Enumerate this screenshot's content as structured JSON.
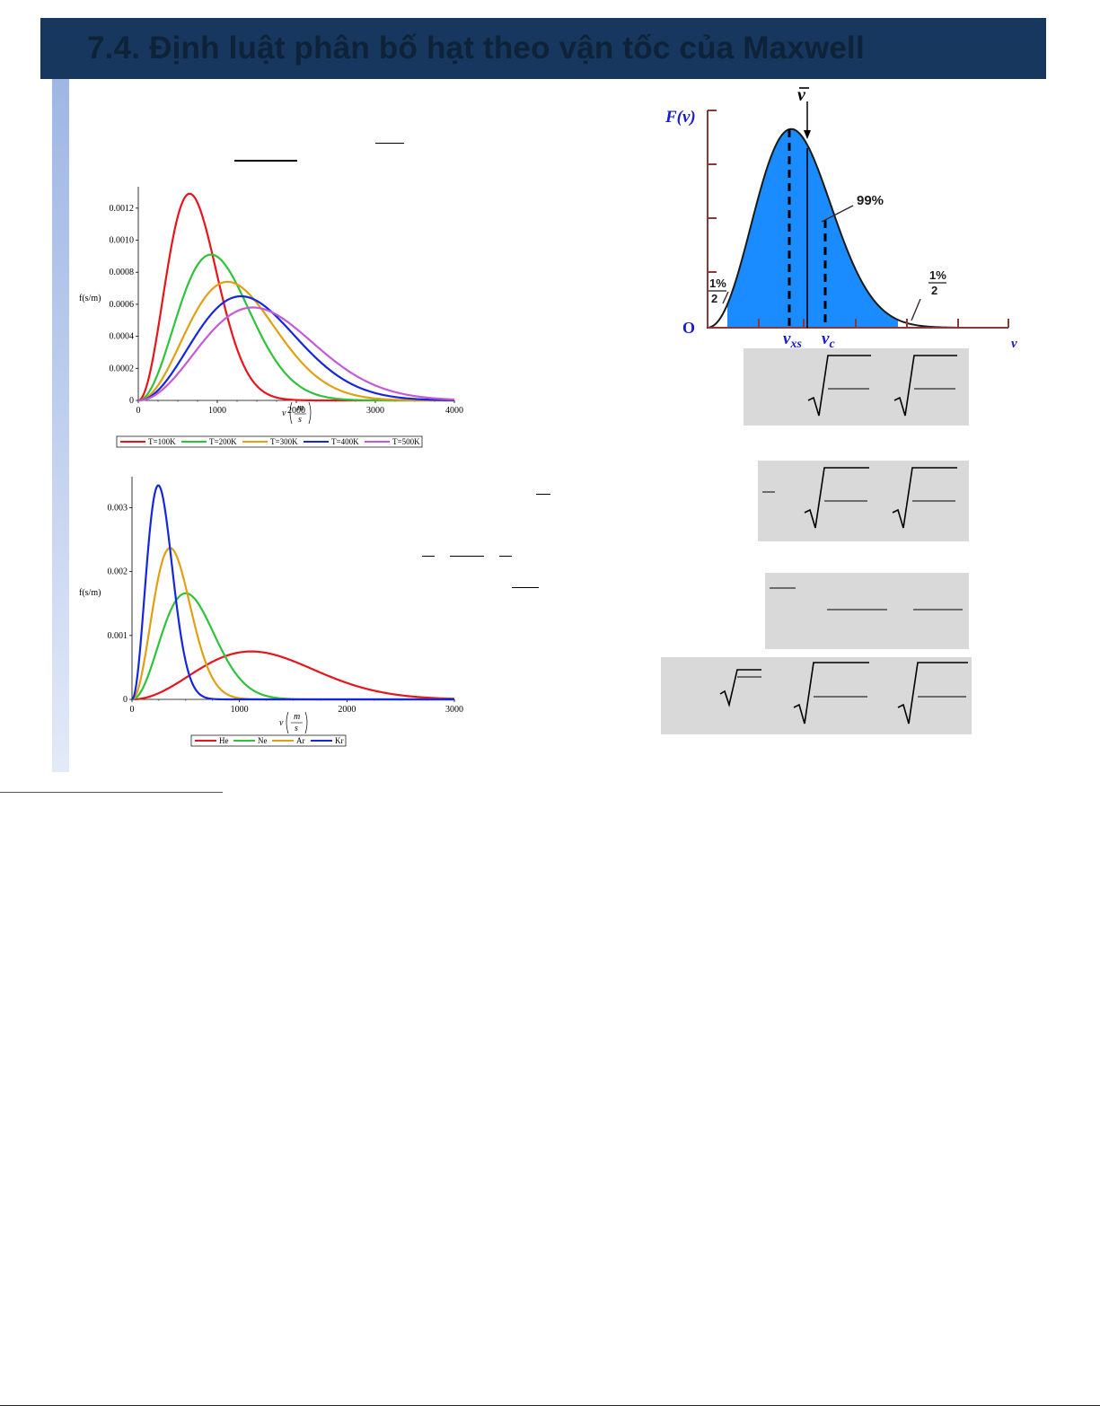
{
  "header": {
    "title": "7.4. Định luật phân bố hạt theo vận tốc của Maxwell"
  },
  "charts": {
    "temperature": {
      "ylabel": "f(s/m)",
      "xlabel_v": "v",
      "xlabel_unit_num": "m",
      "xlabel_unit_den": "s",
      "yticks": [
        "0",
        "0.0002",
        "0.0004",
        "0.0006",
        "0.0008",
        "0.0010",
        "0.0012"
      ],
      "xticks": [
        "0",
        "1000",
        "2000",
        "3000",
        "4000"
      ]
    },
    "gases": {
      "ylabel": "f(s/m)",
      "xlabel_v": "v",
      "xlabel_unit_num": "m",
      "xlabel_unit_den": "s",
      "yticks": [
        "0",
        "0.001",
        "0.002",
        "0.003"
      ],
      "xticks": [
        "0",
        "1000",
        "2000",
        "3000"
      ]
    },
    "maxwell": {
      "ylabel": "F(v)",
      "origin": "O",
      "xaxis": "v",
      "vbar": "v",
      "vxs": "v",
      "vxs_sub": "xs",
      "vc": "v",
      "vc_sub": "c",
      "pct_main": "99%",
      "pct_left_num": "1%",
      "pct_left_den": "2",
      "pct_right_num": "1%",
      "pct_right_den": "2"
    }
  },
  "chart_data": [
    {
      "type": "line",
      "ylabel": "f(s/m)",
      "xlabel": "v (m/s)",
      "xlim": [
        0,
        4000
      ],
      "ylim": [
        0,
        0.0013
      ],
      "grid": false,
      "legend": "bottom",
      "series": [
        {
          "name": "T=100K",
          "color": "#e8141c",
          "peak_x": 650,
          "peak_y": 0.00129
        },
        {
          "name": "T=200K",
          "color": "#2fc23a",
          "peak_x": 920,
          "peak_y": 0.00091
        },
        {
          "name": "T=300K",
          "color": "#e0a012",
          "peak_x": 1130,
          "peak_y": 0.00074
        },
        {
          "name": "T=400K",
          "color": "#1426e0",
          "peak_x": 1300,
          "peak_y": 0.00065
        },
        {
          "name": "T=500K",
          "color": "#c45ad6",
          "peak_x": 1450,
          "peak_y": 0.00058
        }
      ]
    },
    {
      "type": "line",
      "ylabel": "f(s/m)",
      "xlabel": "v (m/s)",
      "xlim": [
        0,
        3000
      ],
      "ylim": [
        0,
        0.0034
      ],
      "grid": false,
      "legend": "bottom",
      "series": [
        {
          "name": "He",
          "color": "#e8141c",
          "peak_x": 1110,
          "peak_y": 0.00075
        },
        {
          "name": "Ne",
          "color": "#2fc23a",
          "peak_x": 500,
          "peak_y": 0.00166
        },
        {
          "name": "Ar",
          "color": "#e0a012",
          "peak_x": 355,
          "peak_y": 0.00237
        },
        {
          "name": "Kr",
          "color": "#1426e0",
          "peak_x": 245,
          "peak_y": 0.00335
        }
      ]
    },
    {
      "type": "area",
      "ylabel": "F(v)",
      "xlabel": "v",
      "annotations": [
        "99%",
        "1%/2",
        "1%/2"
      ]
    }
  ]
}
